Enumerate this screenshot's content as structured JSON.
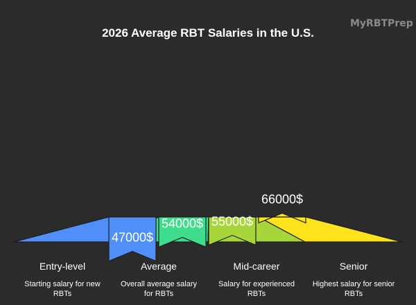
{
  "brand": "MyRBTPrep",
  "colors": {
    "background": "#2b2b2b",
    "text": "#ffffff",
    "brand": "#8a8a8a",
    "edge": "#1e1e1e"
  },
  "chart_data": {
    "type": "bar",
    "title": "2026 Average RBT Salaries in the U.S.",
    "xlabel": "",
    "ylabel": "",
    "grid": false,
    "legend": "none",
    "ylim": [
      0,
      66000
    ],
    "categories": [
      "Entry-level",
      "Average",
      "Mid-career",
      "Senior"
    ],
    "values": [
      47000,
      54000,
      55000,
      66000
    ],
    "value_labels": [
      "47000$",
      "54000$",
      "55000$",
      "66000$"
    ],
    "descriptions": [
      [
        "Starting salary for new",
        "RBTs"
      ],
      [
        "Overall average salary",
        "for RBTs"
      ],
      [
        "Salary for experienced",
        "RBTs"
      ],
      [
        "Highest salary for senior",
        "RBTs"
      ]
    ],
    "colors": [
      "#4f8ff7",
      "#3edc8c",
      "#a6d63a",
      "#fde31c"
    ]
  }
}
